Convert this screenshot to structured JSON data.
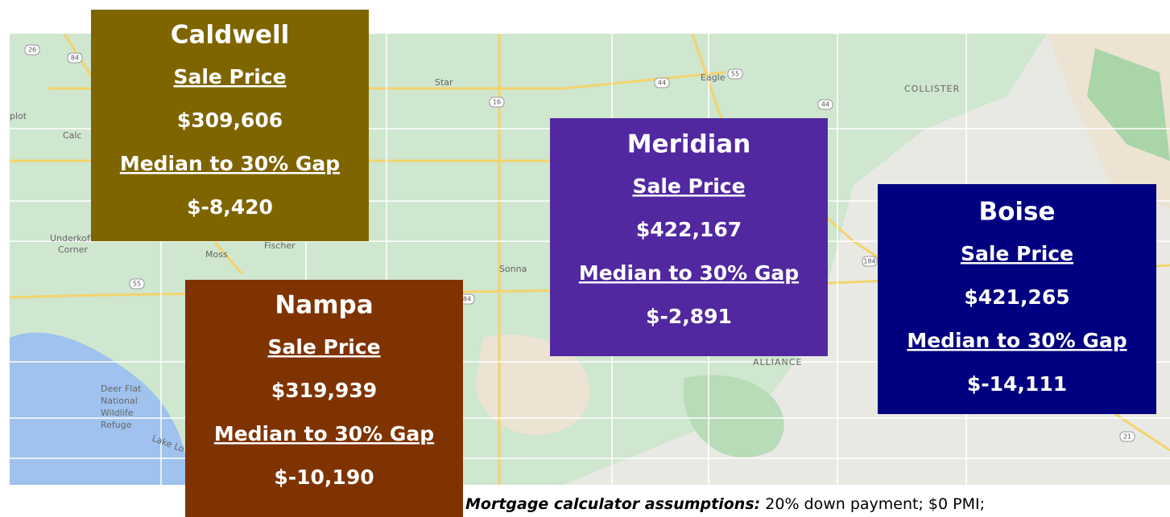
{
  "cities": [
    {
      "name": "Caldwell",
      "price_label": "Sale Price",
      "price": "$309,606",
      "gap_label": "Median to 30% Gap",
      "gap": "$-8,420",
      "color": "#7f6500"
    },
    {
      "name": "Meridian",
      "price_label": "Sale Price",
      "price": "$422,167",
      "gap_label": "Median to 30% Gap",
      "gap": "$-2,891",
      "color": "#5128a0"
    },
    {
      "name": "Boise",
      "price_label": "Sale Price",
      "price": "$421,265",
      "gap_label": "Median to 30% Gap",
      "gap": "$-14,111",
      "color": "#000080"
    },
    {
      "name": "Nampa",
      "price_label": "Sale Price",
      "price": "$319,939",
      "gap_label": "Median to 30% Gap",
      "gap": "$-10,190",
      "color": "#7f3300"
    }
  ],
  "map_labels": [
    "Star",
    "Eagle",
    "COLLISTER",
    "Calc",
    "plot",
    "Fischer",
    "Moss",
    "Sonna",
    "Underkoflers",
    "Corner",
    "ALLIANCE",
    "Deer Flat",
    "National",
    "Wildlife",
    "Refuge",
    "Lake Lo"
  ],
  "road_shields": [
    "26",
    "84",
    "44",
    "55",
    "16",
    "44",
    "184",
    "84",
    "55",
    "21"
  ],
  "footnote": {
    "lead": "Mortgage calculator assumptions:",
    "text": " 20% down payment; $0 PMI;"
  }
}
